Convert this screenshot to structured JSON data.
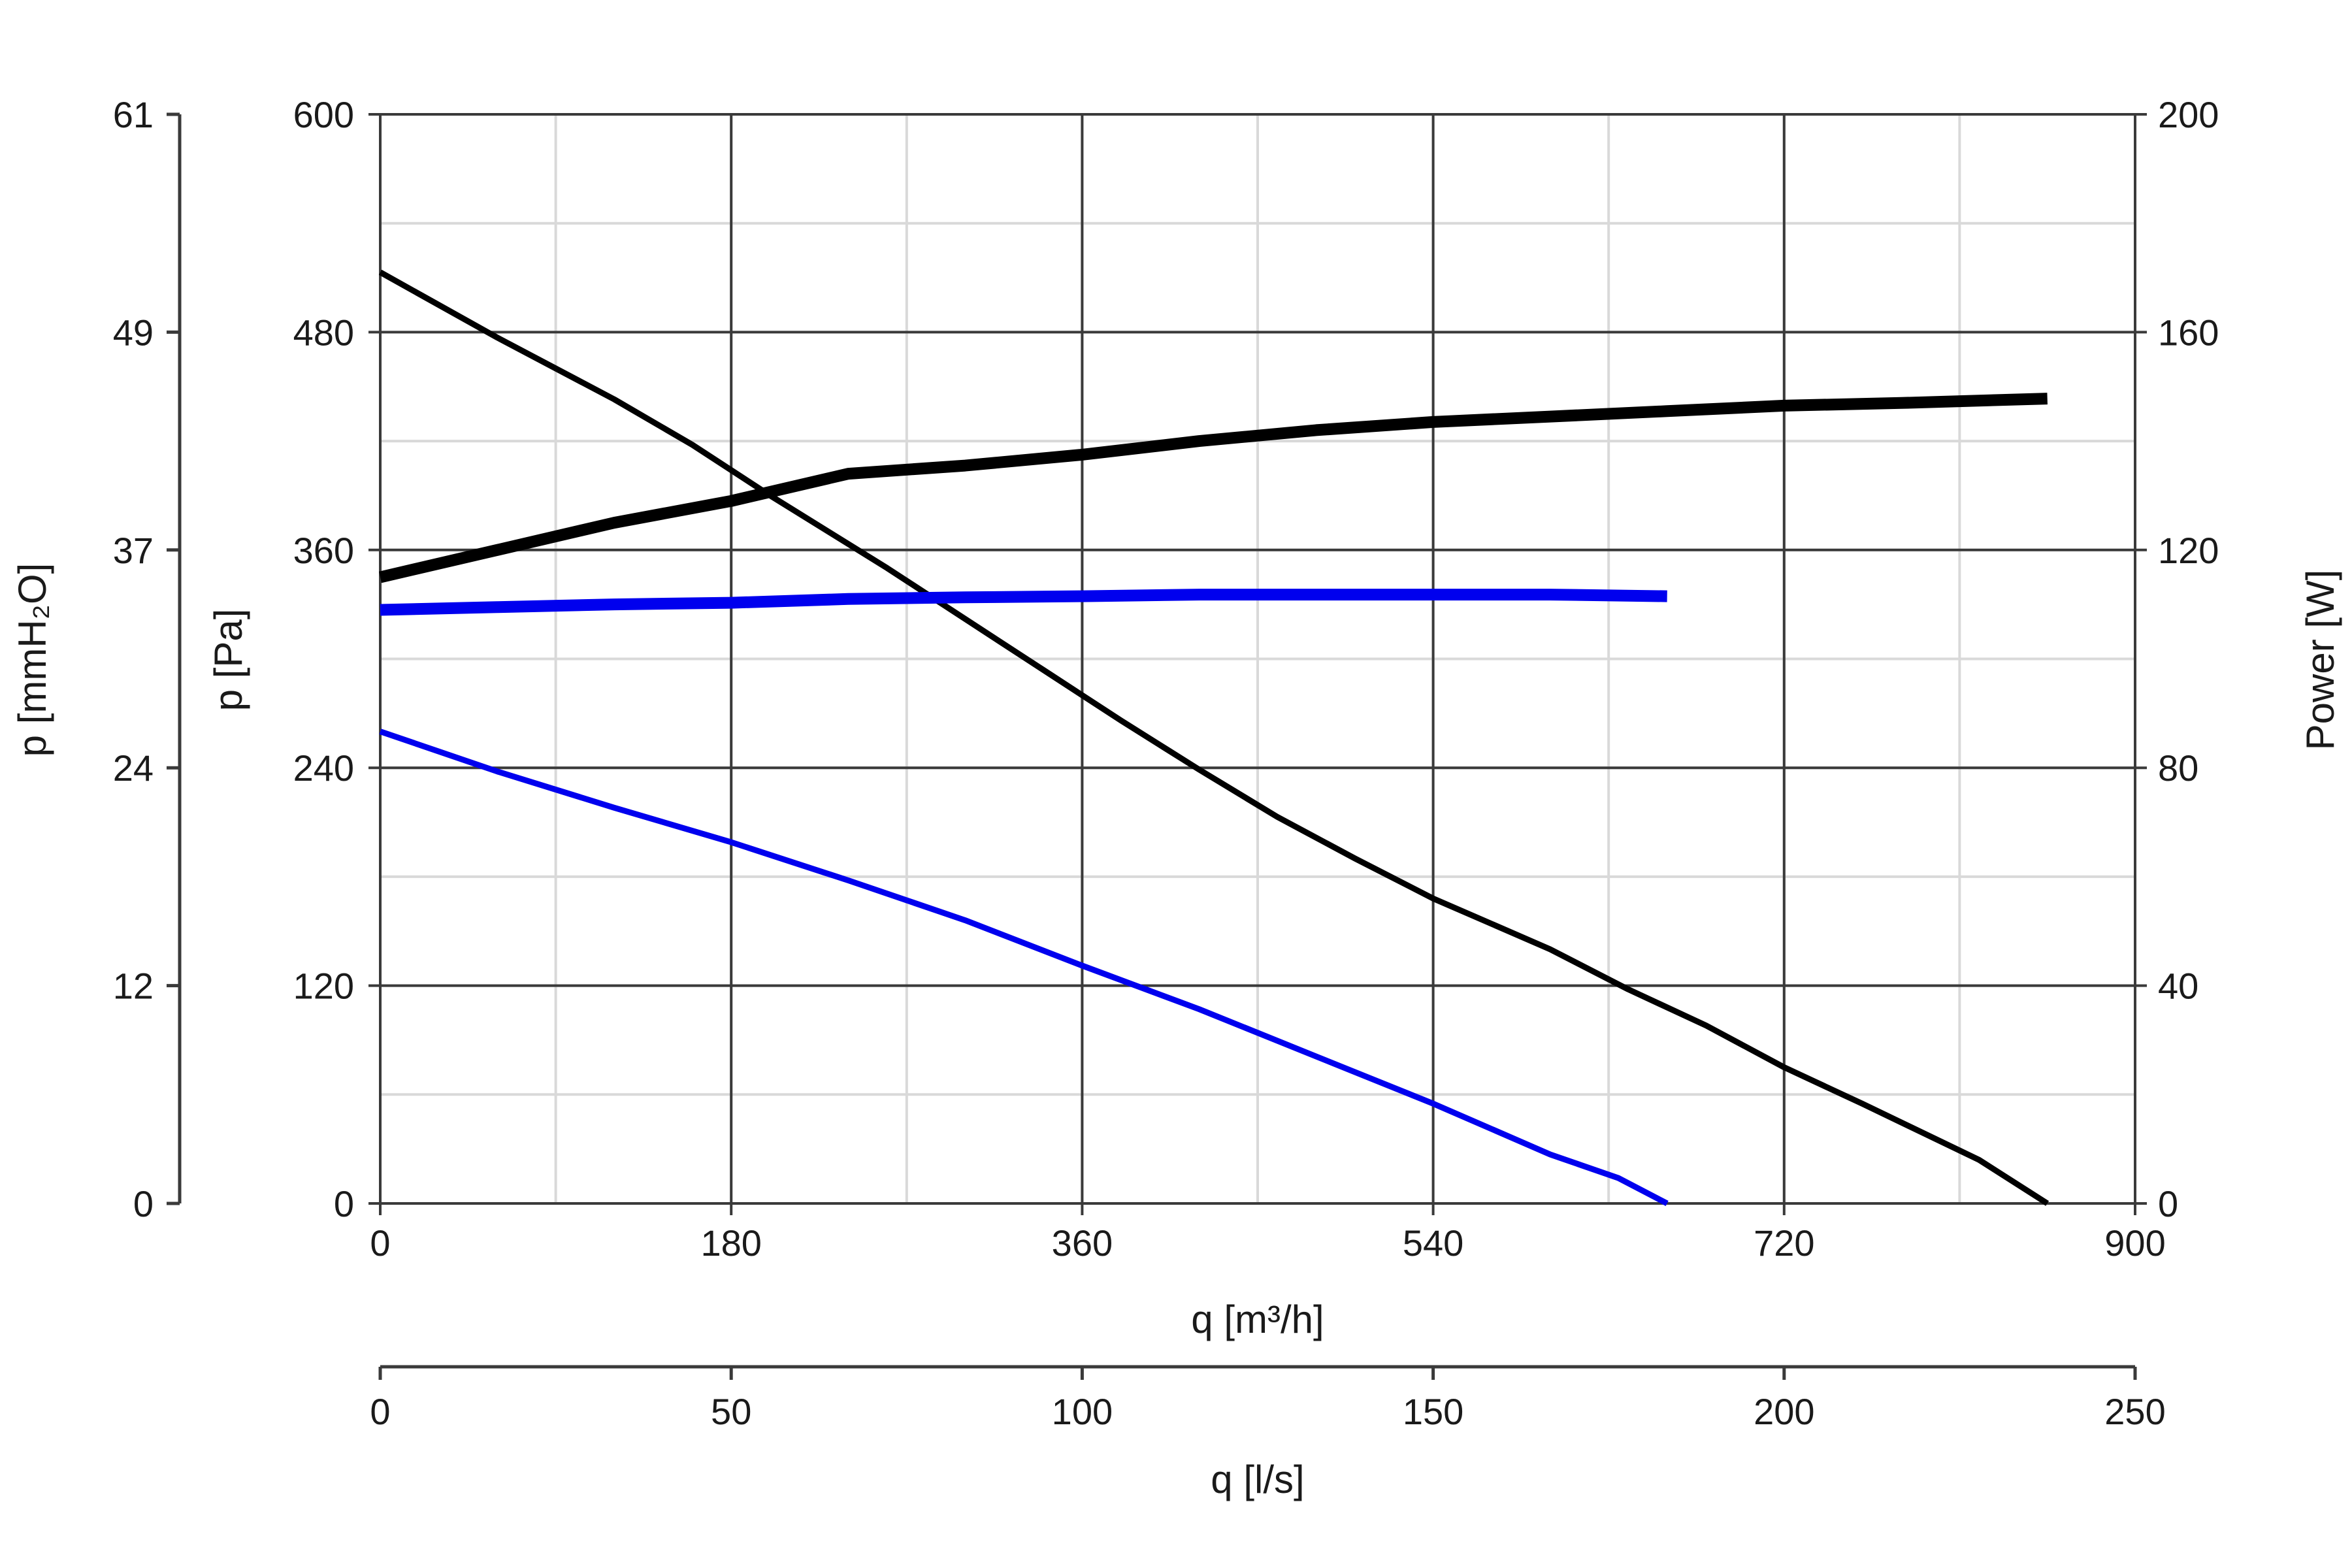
{
  "chart_data": {
    "type": "line",
    "x_axis": {
      "label": "q [m³/h]",
      "ticks": [
        "0",
        "180",
        "360",
        "540",
        "720",
        "900"
      ],
      "range": [
        0,
        900
      ],
      "minor_step": 90
    },
    "x2_axis": {
      "label": "q [l/s]",
      "ticks": [
        "0",
        "50",
        "100",
        "150",
        "200",
        "250"
      ],
      "range": [
        0,
        250
      ]
    },
    "y_axis": {
      "label": "p [Pa]",
      "ticks": [
        "0",
        "120",
        "240",
        "360",
        "480",
        "600"
      ],
      "range": [
        0,
        600
      ],
      "minor_step": 60
    },
    "y_left_axis": {
      "label": "p [mmH₂O]",
      "ticks": [
        "0",
        "12",
        "24",
        "37",
        "49",
        "61"
      ]
    },
    "y_right_axis": {
      "label": "Power [W]",
      "ticks": [
        "0",
        "40",
        "80",
        "120",
        "160",
        "200"
      ],
      "range": [
        0,
        200
      ]
    },
    "grid": true,
    "series": [
      {
        "kind": "pressure",
        "axis": "pressure",
        "color": "#000000",
        "x": [
          0,
          60,
          120,
          160,
          200,
          260,
          300,
          340,
          380,
          420,
          460,
          500,
          540,
          600,
          640,
          680,
          720,
          760,
          820,
          855
        ],
        "y": [
          513,
          477,
          443,
          418,
          390,
          350,
          322,
          294,
          266,
          239,
          213,
          190,
          168,
          140,
          118,
          98,
          75,
          55,
          24,
          0
        ]
      },
      {
        "kind": "pressure",
        "axis": "pressure",
        "color": "#0000ee",
        "x": [
          0,
          60,
          120,
          180,
          240,
          300,
          360,
          420,
          480,
          540,
          600,
          635,
          660
        ],
        "y": [
          260,
          238,
          218,
          199,
          178,
          156,
          131,
          107,
          81,
          55,
          27,
          14,
          0
        ]
      },
      {
        "kind": "power",
        "axis": "power",
        "color": "#000000",
        "x": [
          0,
          60,
          120,
          180,
          240,
          300,
          360,
          420,
          480,
          540,
          600,
          660,
          720,
          780,
          855
        ],
        "y": [
          115,
          120,
          125,
          129,
          134,
          135.5,
          137.5,
          140,
          142,
          143.5,
          144.5,
          145.5,
          146.5,
          147,
          147.8
        ]
      },
      {
        "kind": "power",
        "axis": "power",
        "color": "#0000ee",
        "x": [
          0,
          60,
          120,
          180,
          240,
          300,
          360,
          420,
          480,
          540,
          600,
          660
        ],
        "y": [
          109,
          109.5,
          110,
          110.3,
          111,
          111.3,
          111.5,
          111.8,
          111.8,
          111.8,
          111.8,
          111.5
        ]
      }
    ]
  }
}
